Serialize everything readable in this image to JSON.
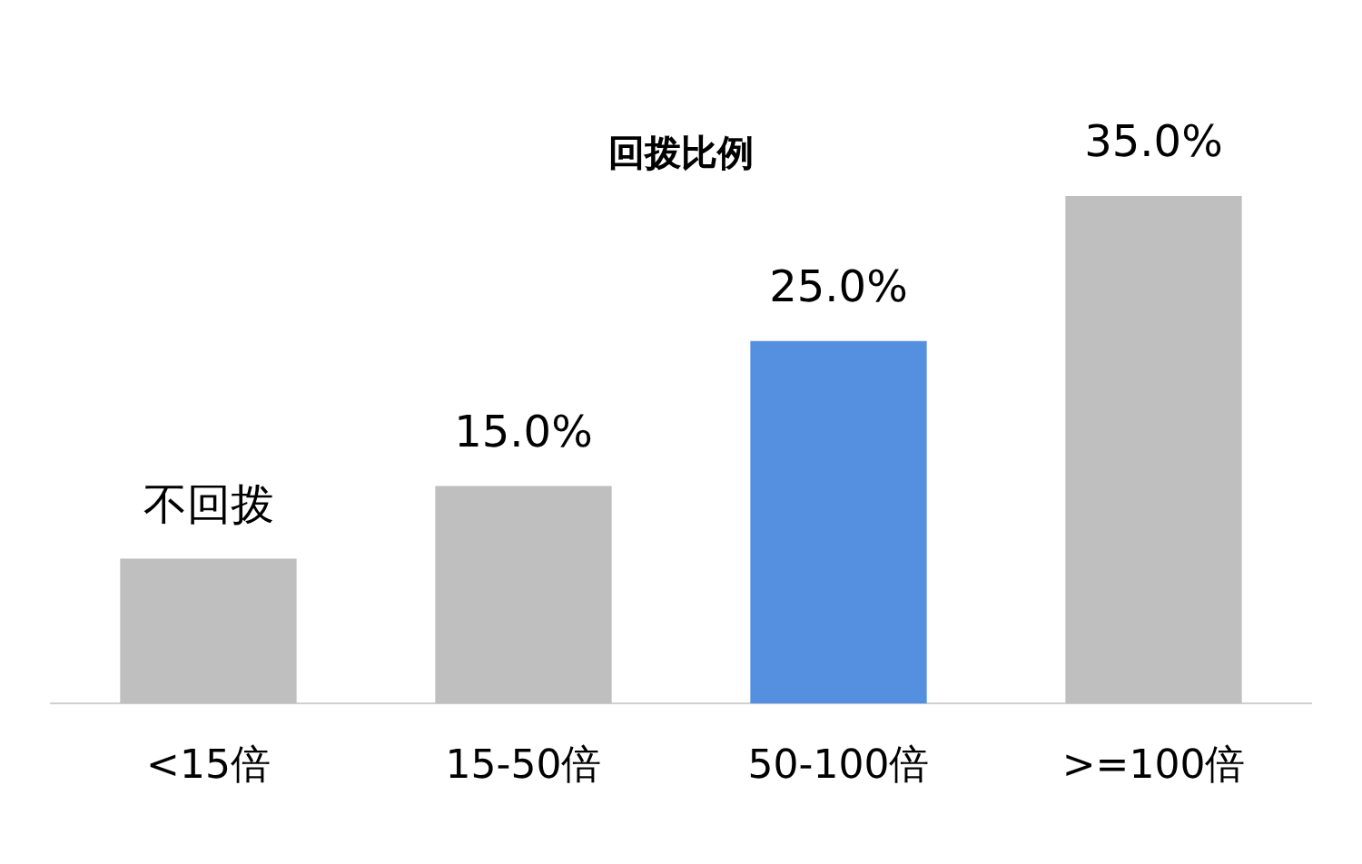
{
  "chart_data": {
    "type": "bar",
    "title": "回拨比例",
    "categories": [
      "<15倍",
      "15-50倍",
      "50-100倍",
      ">=100倍"
    ],
    "values": [
      10,
      15,
      25,
      35
    ],
    "colors": [
      "#bfbfbf",
      "#bfbfbf",
      "#5590e0",
      "#bfbfbf"
    ],
    "value_labels": [
      "不回拨",
      "15.0%",
      "25.0%",
      "35.0%"
    ],
    "grid": false,
    "legend": false
  }
}
